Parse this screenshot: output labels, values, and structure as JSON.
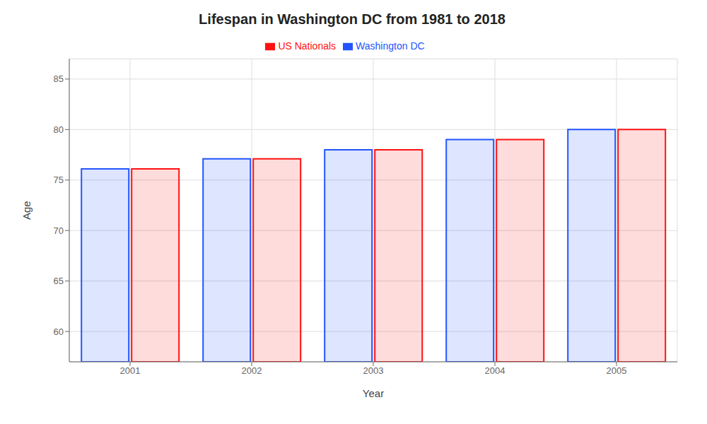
{
  "chart_data": {
    "type": "bar",
    "title": "Lifespan in Washington DC from 1981 to 2018",
    "xlabel": "Year",
    "ylabel": "Age",
    "categories": [
      "2001",
      "2002",
      "2003",
      "2004",
      "2005"
    ],
    "series": [
      {
        "name": "Washington DC",
        "color": "#2255ff",
        "values": [
          76.1,
          77.1,
          78.0,
          79.0,
          80.0
        ]
      },
      {
        "name": "US Nationals",
        "color": "#ff1111",
        "values": [
          76.1,
          77.1,
          78.0,
          79.0,
          80.0
        ]
      }
    ],
    "ylim": [
      57,
      87
    ],
    "yticks": [
      60,
      65,
      70,
      75,
      80,
      85
    ],
    "grid": true,
    "legend": "top"
  }
}
